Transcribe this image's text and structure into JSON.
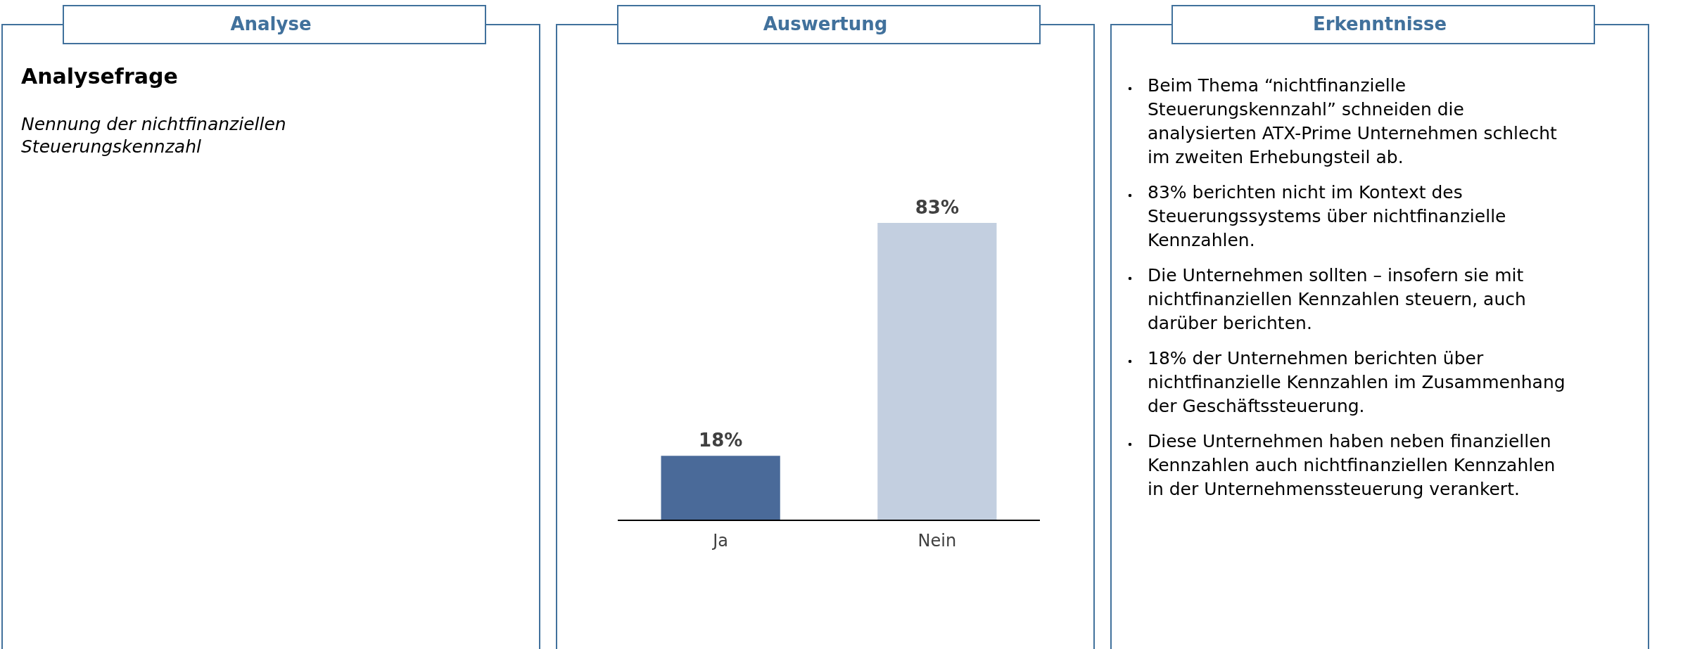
{
  "chart_data": [
    {
      "type": "other",
      "title": "Analyse",
      "annotations": [
        "Analysefrage",
        "Nennung der nichtfinanziellen Steuerungskennzahl"
      ]
    },
    {
      "type": "bar",
      "title": "Auswertung",
      "categories": [
        "Ja",
        "Nein"
      ],
      "values": [
        18,
        83
      ],
      "colors": [
        "#4a6a99",
        "#c3cfe0"
      ],
      "value_labels": [
        "18%",
        "83%"
      ]
    },
    {
      "type": "other",
      "title": "Erkenntnisse",
      "annotations": [
        "Beim Thema “nichtfinanzielle Steuerungskennzahl” schneiden die analysierten ATX-Prime Unternehmen schlecht im zweiten Erhebungsteil ab.",
        "83% berichten nicht im Kontext des Steuerungssystems über nichtfinanzielle Kennzahlen.",
        "Die Unternehmen sollten – insofern sie mit nichtfinanziellen Kennzahlen steuern, auch darüber berichten.",
        "18% der Unternehmen berichten über nichtfinanzielle Kennzahlen im Zusammenhang der Geschäftssteuerung.",
        "Diese Unternehmen haben neben finanziellen Kennzahlen auch nichtfinanziellen Kennzahlen in der Unternehmenssteuerung verankert."
      ]
    }
  ]
}
